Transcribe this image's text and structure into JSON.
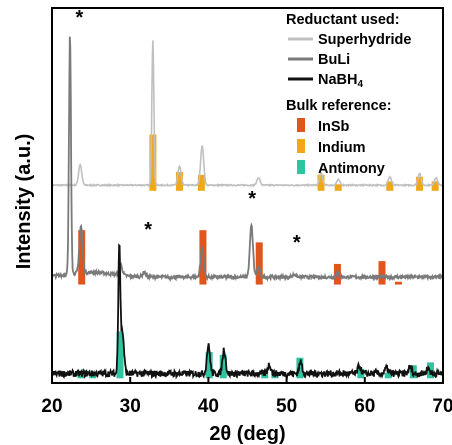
{
  "chart_data": {
    "type": "line",
    "xlabel": "2θ (deg)",
    "ylabel": "Intensity (a.u.)",
    "xlim": [
      20,
      70
    ],
    "x_ticks": [
      "20",
      "30",
      "40",
      "50",
      "60",
      "70"
    ],
    "y_ticks_labeled": false,
    "grid": false,
    "legend": {
      "placement": "top-right",
      "reductant_heading": "Reductant used:",
      "reference_heading": "Bulk reference:",
      "entries": [
        {
          "key": "superhydride",
          "label": "Superhydride",
          "color": "#c0c0c0",
          "kind": "line"
        },
        {
          "key": "buli",
          "label": "BuLi",
          "color": "#7a7a7a",
          "kind": "line"
        },
        {
          "key": "nabh4",
          "label": "NaBH",
          "sub": "4",
          "color": "#111111",
          "kind": "line"
        },
        {
          "key": "insb",
          "label": "InSb",
          "color": "#e0541e",
          "kind": "bar"
        },
        {
          "key": "indium",
          "label": "Indium",
          "color": "#f0a818",
          "kind": "bar"
        },
        {
          "key": "antimony",
          "label": "Antimony",
          "color": "#2ec4a0",
          "kind": "bar"
        }
      ]
    },
    "series": [
      {
        "key": "superhydride",
        "color": "#c0c0c0",
        "offset": 2.0,
        "baseline": 0.06,
        "peaks": [
          {
            "x": 23.6,
            "h": 0.22
          },
          {
            "x": 32.9,
            "h": 1.55
          },
          {
            "x": 36.3,
            "h": 0.2
          },
          {
            "x": 39.2,
            "h": 0.42
          },
          {
            "x": 46.4,
            "h": 0.08
          },
          {
            "x": 54.4,
            "h": 0.13
          },
          {
            "x": 56.6,
            "h": 0.06
          },
          {
            "x": 63.2,
            "h": 0.09
          },
          {
            "x": 67.0,
            "h": 0.13
          },
          {
            "x": 69.1,
            "h": 0.08
          }
        ]
      },
      {
        "key": "buli",
        "color": "#7a7a7a",
        "offset": 1.0,
        "baseline": 0.08,
        "peaks": [
          {
            "x": 22.3,
            "h": 2.55
          },
          {
            "x": 23.7,
            "h": 0.5
          },
          {
            "x": 28.8,
            "h": 0.11
          },
          {
            "x": 31.8,
            "h": 0.05
          },
          {
            "x": 39.2,
            "h": 0.32
          },
          {
            "x": 45.5,
            "h": 0.55
          },
          {
            "x": 46.4,
            "h": 0.1
          },
          {
            "x": 51.0,
            "h": 0.03
          },
          {
            "x": 56.5,
            "h": 0.04
          }
        ]
      },
      {
        "key": "nabh4",
        "color": "#111111",
        "offset": 0.0,
        "baseline": 0.05,
        "peaks": [
          {
            "x": 28.6,
            "h": 1.35
          },
          {
            "x": 29.0,
            "h": 0.45
          },
          {
            "x": 40.0,
            "h": 0.3
          },
          {
            "x": 42.0,
            "h": 0.26
          },
          {
            "x": 47.8,
            "h": 0.1
          },
          {
            "x": 51.8,
            "h": 0.12
          },
          {
            "x": 59.3,
            "h": 0.08
          },
          {
            "x": 62.8,
            "h": 0.06
          },
          {
            "x": 65.8,
            "h": 0.07
          },
          {
            "x": 68.1,
            "h": 0.06
          }
        ]
      }
    ],
    "reference_bars": [
      {
        "ref": "insb",
        "level": 1.0,
        "bars": [
          {
            "x": 23.8,
            "h": 0.58
          },
          {
            "x": 39.3,
            "h": 0.58
          },
          {
            "x": 46.5,
            "h": 0.45
          },
          {
            "x": 56.5,
            "h": 0.22
          },
          {
            "x": 62.2,
            "h": 0.25
          },
          {
            "x": 64.3,
            "h": 0.03
          }
        ]
      },
      {
        "ref": "indium",
        "level": 2.0,
        "bars": [
          {
            "x": 32.9,
            "h": 0.6
          },
          {
            "x": 36.3,
            "h": 0.2
          },
          {
            "x": 39.1,
            "h": 0.17
          },
          {
            "x": 54.4,
            "h": 0.17
          },
          {
            "x": 56.6,
            "h": 0.07
          },
          {
            "x": 63.2,
            "h": 0.1
          },
          {
            "x": 67.0,
            "h": 0.15
          },
          {
            "x": 69.0,
            "h": 0.1
          }
        ]
      },
      {
        "ref": "antimony",
        "level": 0.0,
        "bars": [
          {
            "x": 23.7,
            "h": 0.08
          },
          {
            "x": 25.2,
            "h": 0.06
          },
          {
            "x": 28.7,
            "h": 0.5
          },
          {
            "x": 40.1,
            "h": 0.28
          },
          {
            "x": 41.9,
            "h": 0.25
          },
          {
            "x": 47.2,
            "h": 0.07
          },
          {
            "x": 48.5,
            "h": 0.07
          },
          {
            "x": 51.7,
            "h": 0.22
          },
          {
            "x": 59.5,
            "h": 0.1
          },
          {
            "x": 63.0,
            "h": 0.06
          },
          {
            "x": 66.2,
            "h": 0.14
          },
          {
            "x": 68.4,
            "h": 0.17
          }
        ]
      }
    ],
    "annotations": [
      {
        "text": "*",
        "x": 23.5,
        "y": 3.78
      },
      {
        "text": "*",
        "x": 32.3,
        "y": 1.52
      },
      {
        "text": "*",
        "x": 45.6,
        "y": 1.85
      },
      {
        "text": "*",
        "x": 51.3,
        "y": 1.38
      }
    ]
  }
}
